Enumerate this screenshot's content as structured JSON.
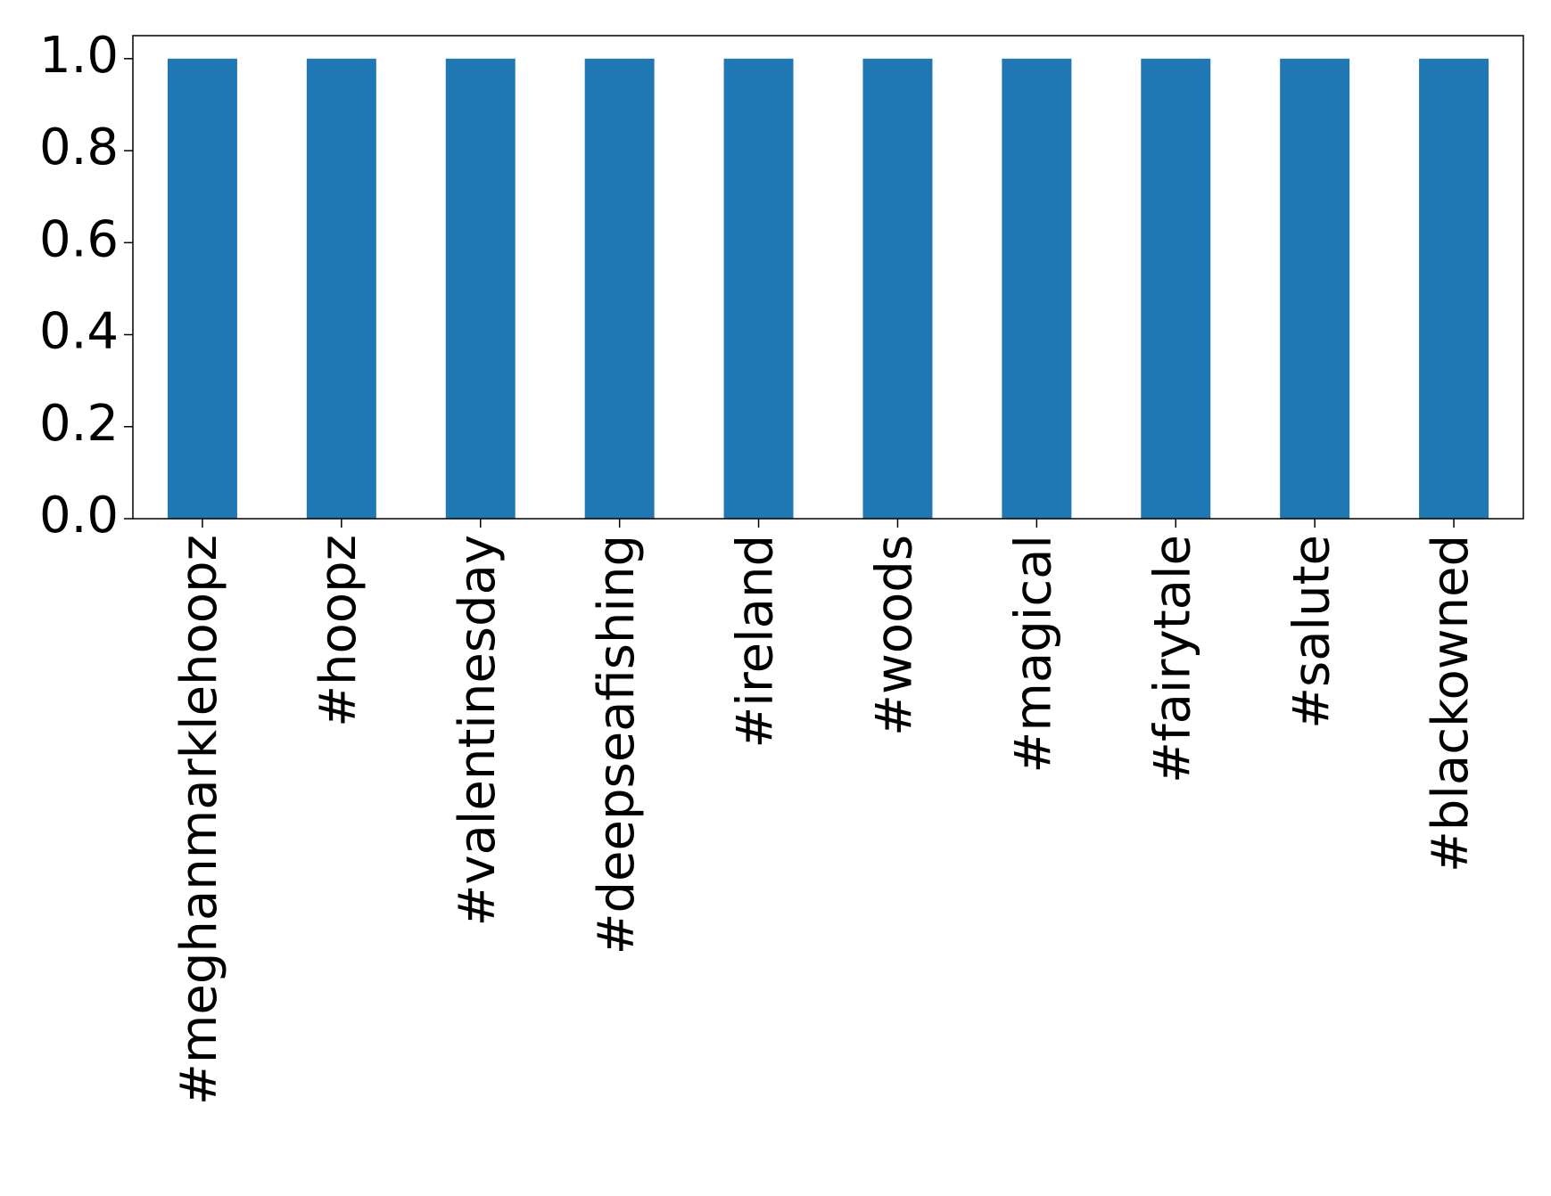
{
  "chart_data": {
    "type": "bar",
    "categories": [
      "#meghanmarklehoopz",
      "#hoopz",
      "#valentinesday",
      "#deepseafishing",
      "#ireland",
      "#woods",
      "#magical",
      "#fairytale",
      "#salute",
      "#blackowned"
    ],
    "values": [
      1,
      1,
      1,
      1,
      1,
      1,
      1,
      1,
      1,
      1
    ],
    "color": "#1f77b4",
    "ylim": [
      0,
      1.05
    ],
    "yticks": [
      {
        "value": 0,
        "label": "0.0"
      },
      0.2,
      0.4,
      0.6,
      0.8,
      {
        "value": 1,
        "label": "1.0"
      }
    ]
  }
}
